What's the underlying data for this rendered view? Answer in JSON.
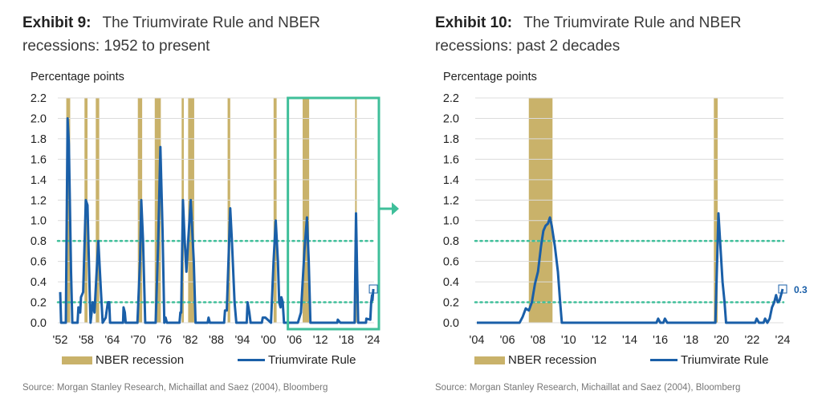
{
  "colors": {
    "recession": "#c9b26a",
    "series": "#1a5fa8",
    "threshold": "#3fbf9a",
    "grid": "#dcdcdc"
  },
  "chart_data": [
    {
      "type": "line",
      "exhibit": "Exhibit 9:",
      "title": "The Triumvirate Rule and NBER recessions: 1952 to present",
      "ylabel": "Percentage points",
      "ylim": [
        0,
        2.2
      ],
      "yticks": [
        "0.0",
        "0.2",
        "0.4",
        "0.6",
        "0.8",
        "1.0",
        "1.2",
        "1.4",
        "1.6",
        "1.8",
        "2.0",
        "2.2"
      ],
      "xlim": [
        1952,
        2024
      ],
      "xticks": [
        {
          "v": 1952,
          "label": "'52"
        },
        {
          "v": 1958,
          "label": "'58"
        },
        {
          "v": 1964,
          "label": "'64"
        },
        {
          "v": 1970,
          "label": "'70"
        },
        {
          "v": 1976,
          "label": "'76"
        },
        {
          "v": 1982,
          "label": "'82"
        },
        {
          "v": 1988,
          "label": "'88"
        },
        {
          "v": 1994,
          "label": "'94"
        },
        {
          "v": 2000,
          "label": "'00"
        },
        {
          "v": 2006,
          "label": "'06"
        },
        {
          "v": 2012,
          "label": "'12"
        },
        {
          "v": 2018,
          "label": "'18"
        },
        {
          "v": 2024,
          "label": "'24"
        }
      ],
      "thresholds": [
        0.8,
        0.2
      ],
      "recessions": [
        [
          1953.4,
          1954.3
        ],
        [
          1957.6,
          1958.3
        ],
        [
          1960.2,
          1961.0
        ],
        [
          1969.9,
          1970.9
        ],
        [
          1973.8,
          1975.2
        ],
        [
          1980.0,
          1980.5
        ],
        [
          1981.5,
          1982.9
        ],
        [
          1990.6,
          1991.2
        ],
        [
          2001.2,
          2001.9
        ],
        [
          2007.9,
          2009.4
        ],
        [
          2020.0,
          2020.3
        ]
      ],
      "highlight": [
        2004.5,
        2025
      ],
      "series": [
        {
          "name": "Triumvirate Rule",
          "x": [
            1952.0,
            1952.2,
            1953.3,
            1953.7,
            1954.0,
            1954.5,
            1954.8,
            1956.0,
            1956.2,
            1956.6,
            1956.8,
            1957.3,
            1957.9,
            1958.3,
            1958.8,
            1959.0,
            1959.5,
            1959.9,
            1960.4,
            1960.8,
            1961.4,
            1961.8,
            1962.5,
            1963.0,
            1963.3,
            1963.5,
            1966.5,
            1966.6,
            1966.9,
            1967.1,
            1969.8,
            1970.4,
            1970.7,
            1971.1,
            1971.6,
            1974.0,
            1974.6,
            1975.1,
            1975.6,
            1976.0,
            1976.3,
            1976.6,
            1979.5,
            1979.7,
            1979.9,
            1980.3,
            1980.7,
            1981.1,
            1981.5,
            1982.1,
            1982.8,
            1983.2,
            1986.0,
            1986.2,
            1986.5,
            1989.8,
            1990.0,
            1990.4,
            1990.8,
            1991.2,
            1991.6,
            1992.2,
            1992.6,
            1995.0,
            1995.2,
            1995.6,
            1995.9,
            1998.5,
            1998.7,
            1999.3,
            2000.6,
            2001.2,
            2001.7,
            2002.2,
            2002.5,
            2002.8,
            2003.0,
            2003.3,
            2003.6,
            2006.8,
            2007.5,
            2008.3,
            2008.9,
            2009.3,
            2009.7,
            2015.9,
            2016.0,
            2016.6,
            2019.9,
            2020.2,
            2020.5,
            2020.7,
            2022.5,
            2022.6,
            2023.5,
            2023.7,
            2023.9,
            2024.0,
            2024.2
          ],
          "y": [
            0.3,
            0.0,
            0.0,
            2.0,
            1.75,
            0.5,
            0.0,
            0.0,
            0.15,
            0.1,
            0.25,
            0.3,
            1.2,
            1.15,
            0.3,
            0.0,
            0.2,
            0.1,
            0.5,
            0.8,
            0.3,
            0.0,
            0.05,
            0.2,
            0.2,
            0.0,
            0.0,
            0.15,
            0.1,
            0.0,
            0.0,
            0.6,
            1.2,
            0.8,
            0.0,
            0.0,
            0.8,
            1.72,
            0.9,
            0.0,
            0.05,
            0.0,
            0.0,
            0.1,
            0.1,
            1.2,
            0.8,
            0.5,
            0.8,
            1.2,
            0.6,
            0.0,
            0.0,
            0.05,
            0.0,
            0.0,
            0.12,
            0.12,
            0.6,
            1.12,
            0.8,
            0.2,
            0.0,
            0.0,
            0.2,
            0.1,
            0.0,
            0.0,
            0.05,
            0.05,
            0.0,
            0.6,
            1.0,
            0.6,
            0.2,
            0.15,
            0.25,
            0.2,
            0.0,
            0.0,
            0.1,
            0.7,
            1.03,
            0.6,
            0.0,
            0.0,
            0.03,
            0.0,
            0.0,
            1.07,
            0.4,
            0.0,
            0.0,
            0.04,
            0.03,
            0.2,
            0.27,
            0.22,
            0.33
          ]
        }
      ],
      "end_label": ""
    },
    {
      "type": "line",
      "exhibit": "Exhibit 10:",
      "title": "The Triumvirate Rule and NBER recessions: past 2 decades",
      "ylabel": "Percentage points",
      "ylim": [
        0,
        2.2
      ],
      "yticks": [
        "0.0",
        "0.2",
        "0.4",
        "0.6",
        "0.8",
        "1.0",
        "1.2",
        "1.4",
        "1.6",
        "1.8",
        "2.0",
        "2.2"
      ],
      "xlim": [
        2004,
        2024
      ],
      "xticks": [
        {
          "v": 2004,
          "label": "'04"
        },
        {
          "v": 2006,
          "label": "'06"
        },
        {
          "v": 2008,
          "label": "'08"
        },
        {
          "v": 2010,
          "label": "'10"
        },
        {
          "v": 2012,
          "label": "'12"
        },
        {
          "v": 2014,
          "label": "'14"
        },
        {
          "v": 2016,
          "label": "'16"
        },
        {
          "v": 2018,
          "label": "'18"
        },
        {
          "v": 2020,
          "label": "'20"
        },
        {
          "v": 2022,
          "label": "'22"
        },
        {
          "v": 2024,
          "label": "'24"
        }
      ],
      "thresholds": [
        0.8,
        0.2
      ],
      "recessions": [
        [
          2007.4,
          2008.95
        ],
        [
          2019.5,
          2019.75
        ]
      ],
      "series": [
        {
          "name": "Triumvirate Rule",
          "x": [
            2004.0,
            2006.8,
            2007.0,
            2007.2,
            2007.4,
            2007.6,
            2007.8,
            2008.0,
            2008.2,
            2008.35,
            2008.5,
            2008.65,
            2008.78,
            2008.9,
            2009.1,
            2009.3,
            2009.45,
            2009.56,
            2015.75,
            2015.86,
            2016.0,
            2016.2,
            2016.3,
            2016.45,
            2019.6,
            2019.8,
            2019.95,
            2020.07,
            2020.2,
            2020.3,
            2022.2,
            2022.3,
            2022.45,
            2022.75,
            2022.85,
            2023.0,
            2023.15,
            2023.3,
            2023.45,
            2023.57,
            2023.68,
            2023.8,
            2024.0
          ],
          "y": [
            0.0,
            0.0,
            0.06,
            0.14,
            0.12,
            0.2,
            0.38,
            0.5,
            0.75,
            0.9,
            0.95,
            0.97,
            1.03,
            0.95,
            0.75,
            0.5,
            0.2,
            0.0,
            0.0,
            0.04,
            0.0,
            0.0,
            0.04,
            0.0,
            0.0,
            1.07,
            0.7,
            0.4,
            0.2,
            0.0,
            0.0,
            0.04,
            0.0,
            0.0,
            0.04,
            0.0,
            0.04,
            0.15,
            0.2,
            0.27,
            0.2,
            0.22,
            0.33
          ]
        }
      ],
      "end_label": "0.3"
    }
  ],
  "legend": {
    "recession": "NBER recession",
    "series": "Triumvirate Rule"
  },
  "source": "Source: Morgan Stanley Research, Michaillat and Saez (2004), Bloomberg"
}
